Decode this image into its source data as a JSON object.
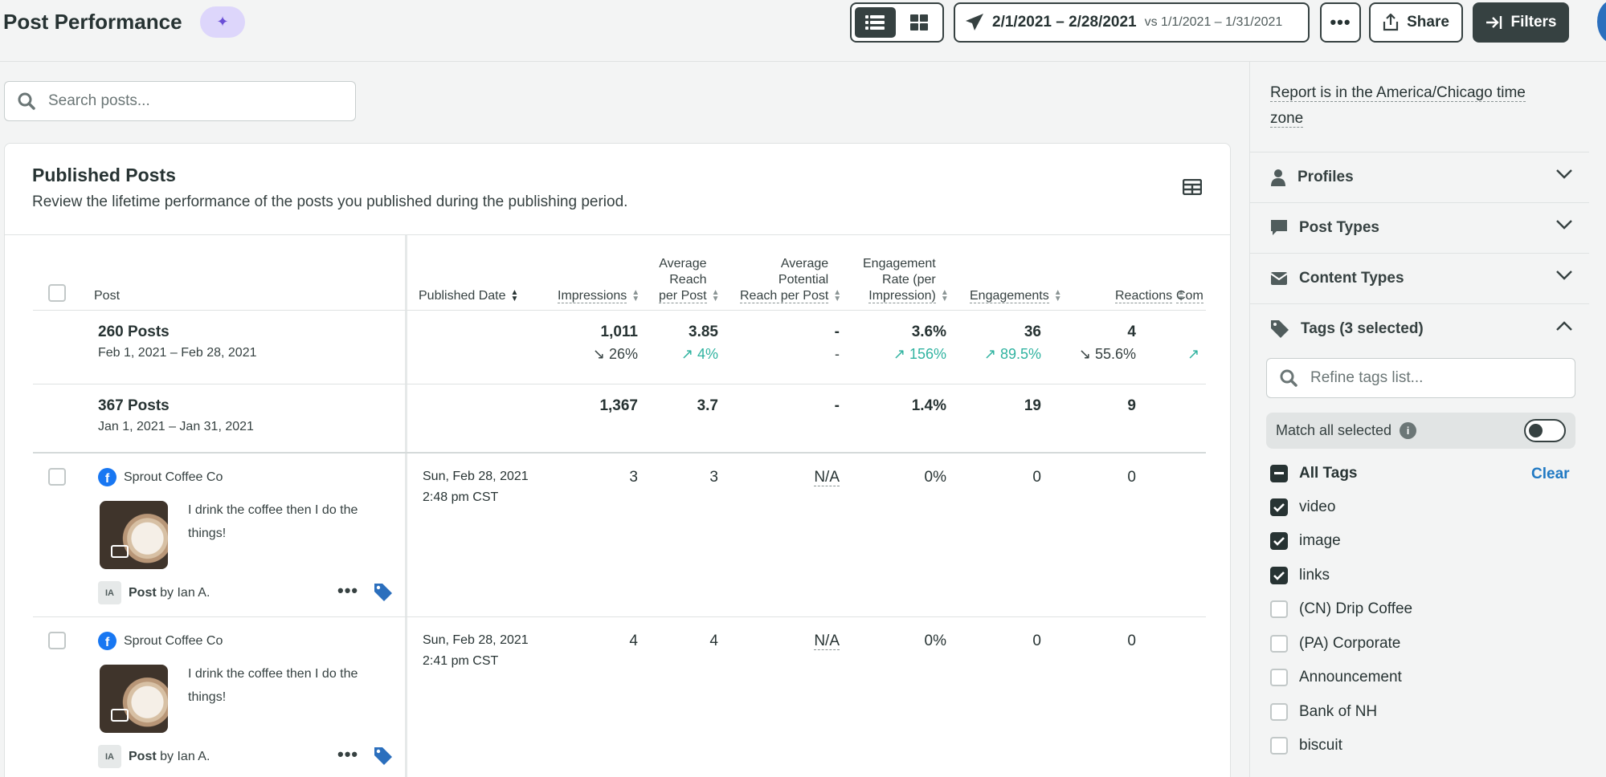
{
  "header": {
    "title": "Post Performance",
    "date_range": "2/1/2021 – 2/28/2021",
    "compare_range": "vs 1/1/2021 – 1/31/2021",
    "more_label": "•••",
    "share_label": "Share",
    "filters_label": "Filters"
  },
  "search": {
    "placeholder": "Search posts..."
  },
  "card": {
    "title": "Published Posts",
    "subtitle": "Review the lifetime performance of the posts you published during the publishing period."
  },
  "table": {
    "columns": {
      "post": "Post",
      "published_date": "Published Date",
      "impressions": "Impressions",
      "avg_reach_1": "Average",
      "avg_reach_2": "Reach",
      "avg_reach_3": "per Post",
      "avg_pot_1": "Average",
      "avg_pot_2": "Potential",
      "avg_pot_3": "Reach per Post",
      "eng_rate_1": "Engagement",
      "eng_rate_2": "Rate (per",
      "eng_rate_3": "Impression)",
      "engagements": "Engagements",
      "reactions": "Reactions",
      "comments": "Com"
    },
    "summary_current": {
      "title": "260 Posts",
      "range": "Feb 1, 2021 – Feb 28, 2021",
      "impressions": "1,011",
      "impressions_delta": "↘ 26%",
      "avg_reach": "3.85",
      "avg_reach_delta": "↗ 4%",
      "avg_potential": "-",
      "avg_potential_delta": "-",
      "eng_rate": "3.6%",
      "eng_rate_delta": "↗ 156%",
      "engagements": "36",
      "engagements_delta": "↗ 89.5%",
      "reactions": "4",
      "reactions_delta": "↘ 55.6%",
      "comments_delta": "↗"
    },
    "summary_previous": {
      "title": "367 Posts",
      "range": "Jan 1, 2021 – Jan 31, 2021",
      "impressions": "1,367",
      "avg_reach": "3.7",
      "avg_potential": "-",
      "eng_rate": "1.4%",
      "engagements": "19",
      "reactions": "9"
    },
    "rows": [
      {
        "profile": "Sprout Coffee Co",
        "text": "I drink the coffee then I do the things!",
        "author_initials": "IA",
        "post_label": "Post",
        "by_label": "by Ian A.",
        "date": "Sun, Feb 28, 2021",
        "time": "2:48 pm CST",
        "impressions": "3",
        "avg_reach": "3",
        "avg_potential": "N/A",
        "eng_rate": "0%",
        "engagements": "0",
        "reactions": "0"
      },
      {
        "profile": "Sprout Coffee Co",
        "text": "I drink the coffee then I do the things!",
        "author_initials": "IA",
        "post_label": "Post",
        "by_label": "by Ian A.",
        "date": "Sun, Feb 28, 2021",
        "time": "2:41 pm CST",
        "impressions": "4",
        "avg_reach": "4",
        "avg_potential": "N/A",
        "eng_rate": "0%",
        "engagements": "0",
        "reactions": "0"
      }
    ]
  },
  "sidebar": {
    "timezone_note": "Report is in the America/Chicago time zone",
    "sections": [
      {
        "label": "Profiles",
        "icon": "person-icon"
      },
      {
        "label": "Post Types",
        "icon": "speech-bubble-icon"
      },
      {
        "label": "Content Types",
        "icon": "envelope-icon"
      },
      {
        "label": "Tags (3 selected)",
        "icon": "tag-icon"
      }
    ],
    "refine_placeholder": "Refine tags list...",
    "match_label": "Match all selected",
    "all_tags_label": "All Tags",
    "clear_label": "Clear",
    "tags": [
      {
        "label": "video",
        "checked": true
      },
      {
        "label": "image",
        "checked": true
      },
      {
        "label": "links",
        "checked": true
      },
      {
        "label": "(CN) Drip Coffee",
        "checked": false
      },
      {
        "label": "(PA) Corporate",
        "checked": false
      },
      {
        "label": "Announcement",
        "checked": false
      },
      {
        "label": "Bank of NH",
        "checked": false
      },
      {
        "label": "biscuit",
        "checked": false
      }
    ]
  },
  "colors": {
    "accent": "#364141",
    "positive": "#30b3a0",
    "link": "#2079c3",
    "facebook": "#1877f2",
    "tag_blue": "#2b6fbd"
  }
}
